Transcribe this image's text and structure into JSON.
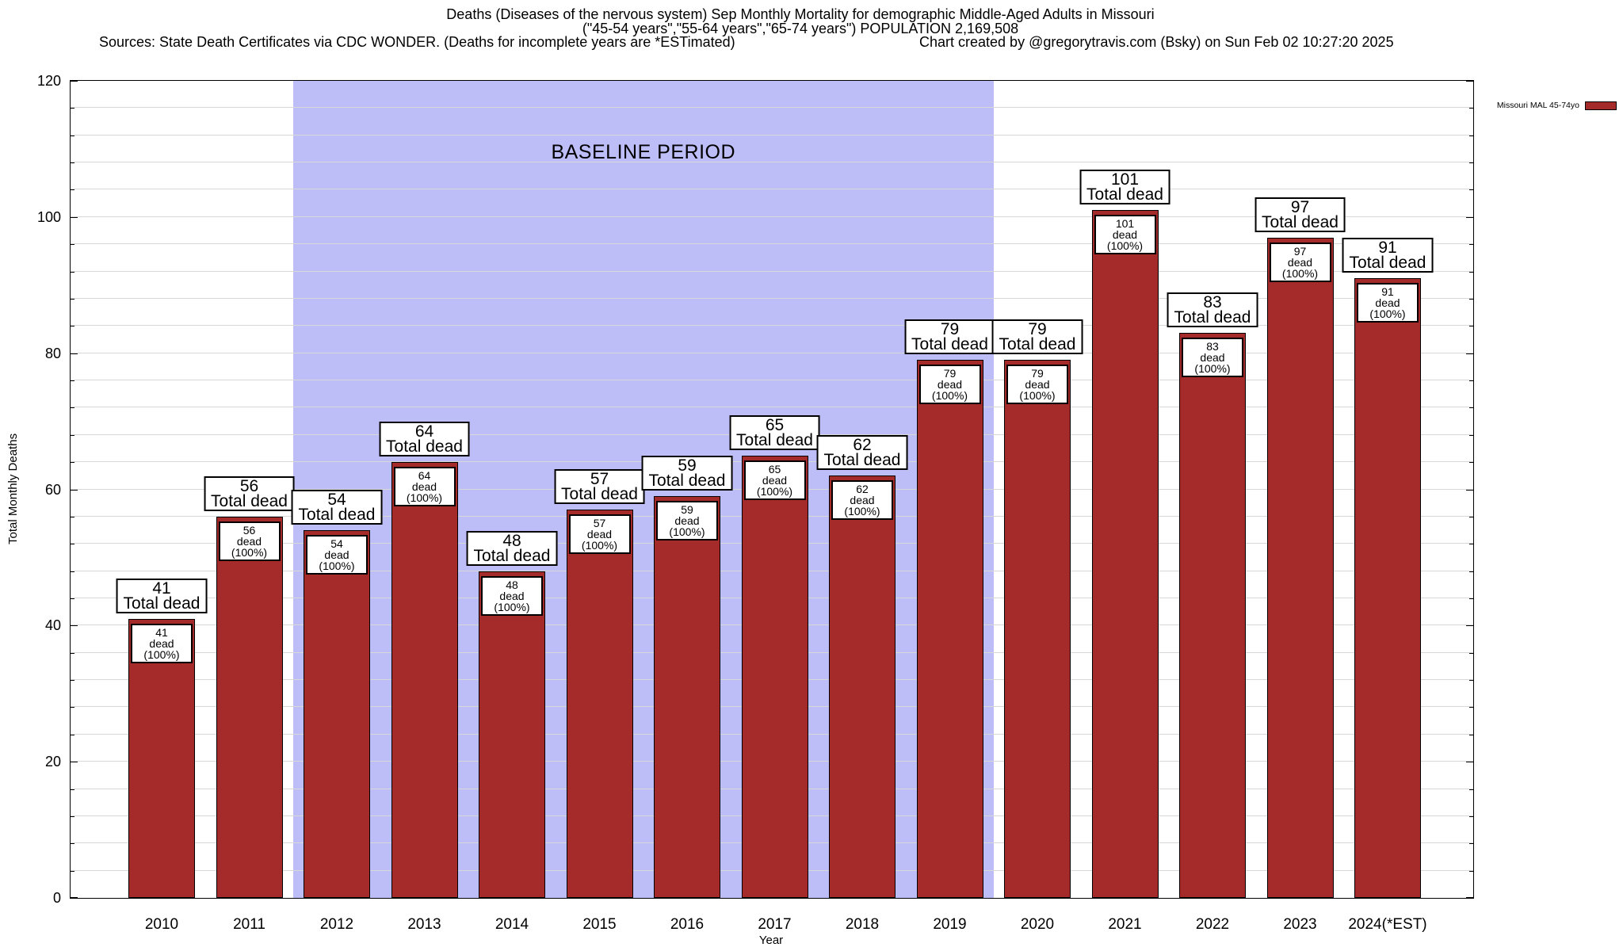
{
  "header": {
    "title_line1": "Deaths (Diseases of the nervous system) Sep Monthly Mortality for demographic Middle-Aged Adults in Missouri",
    "title_line2": "(\"45-54 years\",\"55-64 years\",\"65-74 years\") POPULATION 2,169,508",
    "sources": "Sources: State Death Certificates via CDC WONDER. (Deaths for incomplete years are *ESTimated)",
    "credit": "Chart created by @gregorytravis.com (Bsky) on Sun Feb 02 10:27:20 2025"
  },
  "axes": {
    "y_tick_labels": [
      0,
      20,
      40,
      60,
      80,
      100,
      120
    ],
    "y_minor_step": 4
  },
  "colors": {
    "bar": "#a52a2a",
    "baseline_region": "#bdbdf8",
    "grid": "#d8d8d8"
  },
  "chart_data": {
    "type": "bar",
    "title": "Deaths (Diseases of the nervous system) Sep Monthly Mortality for demographic Middle-Aged Adults in Missouri",
    "subtitle": "(\"45-54 years\",\"55-64 years\",\"65-74 years\") POPULATION 2,169,508",
    "xlabel": "Year",
    "ylabel": "Total Monthly Deaths",
    "ylim": [
      0,
      120
    ],
    "grid": true,
    "legend_position": "top-right",
    "categories": [
      "2010",
      "2011",
      "2012",
      "2013",
      "2014",
      "2015",
      "2016",
      "2017",
      "2018",
      "2019",
      "2020",
      "2021",
      "2022",
      "2023",
      "2024(*EST)"
    ],
    "series": [
      {
        "name": "Missouri MAL 45-74yo",
        "values": [
          41,
          56,
          54,
          64,
          48,
          57,
          59,
          65,
          62,
          79,
          79,
          101,
          83,
          97,
          91
        ]
      }
    ],
    "baseline_period": {
      "label": "BASELINE PERIOD",
      "from_category": "2012",
      "to_category": "2019"
    },
    "bar_annotations": {
      "above_suffix": "Total dead",
      "inside_suffix": "dead (100%)"
    }
  }
}
